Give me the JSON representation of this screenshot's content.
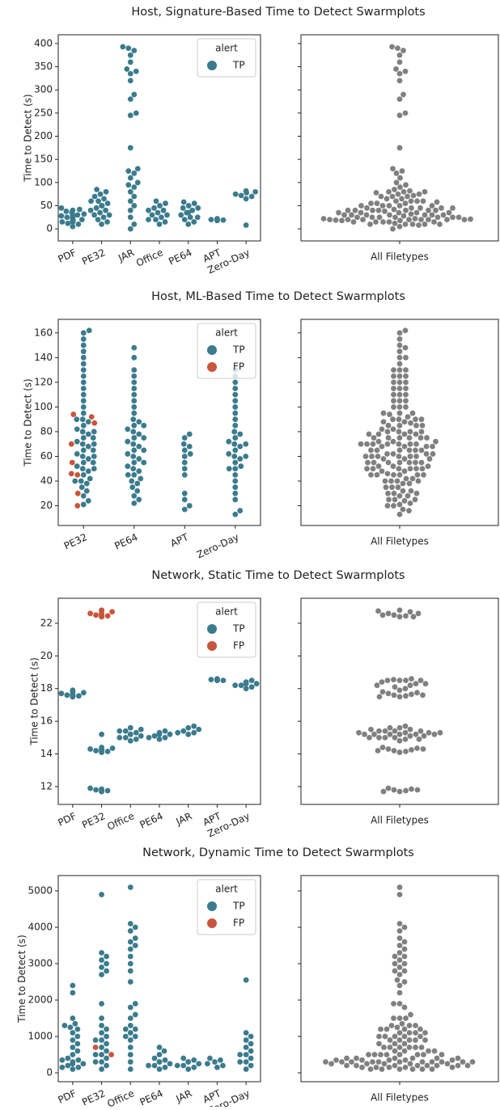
{
  "chart_data": [
    {
      "type": "swarm",
      "title": "Host, Signature-Based Time to Detect Swarmplots",
      "ylabel": "Time to Detect (s)",
      "xlabel_all": "All Filetypes",
      "legend_title": "alert",
      "legend": "upper right",
      "categories": [
        "PDF",
        "PE32",
        "JAR",
        "Office",
        "PE64",
        "APT",
        "Zero-Day"
      ],
      "ylim": [
        -26,
        419
      ],
      "yticks": [
        0,
        50,
        100,
        150,
        200,
        250,
        300,
        350,
        400
      ],
      "series": [
        {
          "name": "TP",
          "color": "#3b7b8d",
          "values": [
            [
              5,
              10,
              12,
              15,
              18,
              20,
              22,
              25,
              28,
              30,
              32,
              35,
              38,
              40,
              42,
              45,
              15,
              20,
              25,
              30
            ],
            [
              10,
              15,
              20,
              25,
              30,
              35,
              40,
              45,
              50,
              55,
              60,
              65,
              70,
              75,
              80,
              85,
              30,
              40,
              50,
              60
            ],
            [
              0,
              10,
              25,
              40,
              50,
              60,
              70,
              80,
              90,
              95,
              100,
              110,
              120,
              125,
              130,
              175,
              245,
              250,
              280,
              290,
              320,
              335,
              340,
              345,
              360,
              375,
              385,
              390,
              393
            ],
            [
              10,
              15,
              20,
              25,
              30,
              35,
              40,
              45,
              50,
              55,
              60,
              20,
              30,
              40
            ],
            [
              10,
              15,
              20,
              25,
              30,
              35,
              40,
              45,
              50,
              55,
              58,
              25,
              35,
              45
            ],
            [
              18,
              19,
              20,
              20,
              21,
              22
            ],
            [
              8,
              65,
              70,
              72,
              75,
              78,
              80,
              82
            ]
          ]
        }
      ]
    },
    {
      "type": "swarm",
      "title": "Host, ML-Based Time to Detect Swarmplots",
      "ylabel": "Time to Detect (s)",
      "xlabel_all": "All Filetypes",
      "legend_title": "alert",
      "legend": "upper right",
      "categories": [
        "PE32",
        "PE64",
        "APT",
        "Zero-Day"
      ],
      "ylim": [
        4,
        171
      ],
      "yticks": [
        20,
        40,
        60,
        80,
        100,
        120,
        140,
        160
      ],
      "series": [
        {
          "name": "TP",
          "color": "#3b7b8d",
          "values": [
            [
              21,
              24,
              28,
              32,
              35,
              38,
              40,
              42,
              45,
              48,
              50,
              52,
              55,
              58,
              60,
              62,
              65,
              68,
              70,
              72,
              75,
              78,
              80,
              82,
              85,
              88,
              90,
              95,
              100,
              105,
              110,
              115,
              120,
              125,
              130,
              135,
              140,
              145,
              150,
              155,
              160,
              162,
              40,
              50,
              60,
              70,
              80,
              90,
              55,
              65,
              75
            ],
            [
              22,
              25,
              28,
              32,
              35,
              38,
              40,
              42,
              45,
              48,
              50,
              52,
              55,
              58,
              60,
              62,
              65,
              68,
              70,
              72,
              75,
              78,
              80,
              82,
              85,
              88,
              90,
              95,
              100,
              105,
              110,
              115,
              120,
              125,
              130,
              140,
              148,
              45,
              55,
              65,
              75,
              85
            ],
            [
              17,
              20,
              25,
              30,
              45,
              50,
              55,
              60,
              62,
              65,
              68,
              70,
              75,
              78
            ],
            [
              13,
              16,
              25,
              30,
              35,
              40,
              45,
              50,
              52,
              55,
              58,
              60,
              62,
              65,
              68,
              70,
              72,
              75,
              78,
              80,
              85,
              90,
              95,
              100,
              105,
              110,
              115,
              120,
              125,
              130,
              50,
              60,
              70
            ]
          ]
        },
        {
          "name": "FP",
          "color": "#c9553c",
          "values": [
            [
              20,
              30,
              45,
              46,
              55,
              70,
              87,
              92,
              94
            ],
            [],
            [],
            []
          ]
        }
      ]
    },
    {
      "type": "swarm",
      "title": "Network, Static Time to Detect Swarmplots",
      "ylabel": "Time to Detect (s)",
      "xlabel_all": "All Filetypes",
      "legend_title": "alert",
      "legend": "upper right",
      "categories": [
        "PDF",
        "PE32",
        "Office",
        "PE64",
        "JAR",
        "APT",
        "Zero-Day"
      ],
      "ylim": [
        10.91,
        23.53
      ],
      "yticks": [
        12,
        14,
        16,
        18,
        20,
        22
      ],
      "series": [
        {
          "name": "TP",
          "color": "#3b7b8d",
          "values": [
            [
              17.5,
              17.55,
              17.6,
              17.65,
              17.7,
              17.75,
              17.8,
              17.9,
              17.5,
              17.6
            ],
            [
              11.7,
              11.75,
              11.8,
              11.85,
              11.9,
              11.7,
              11.8,
              14.1,
              14.15,
              14.2,
              14.25,
              14.3,
              14.35,
              14.4,
              14.2,
              14.3,
              15.2
            ],
            [
              14.8,
              14.9,
              15.0,
              15.1,
              15.2,
              15.3,
              15.4,
              15.5,
              15.6,
              15.0,
              15.2,
              15.4
            ],
            [
              14.9,
              15.0,
              15.1,
              15.2,
              15.3,
              15.4,
              15.0,
              15.2
            ],
            [
              15.2,
              15.3,
              15.4,
              15.5,
              15.6,
              15.7,
              15.3
            ],
            [
              18.5,
              18.5,
              18.55,
              18.6,
              18.5
            ],
            [
              18.0,
              18.1,
              18.2,
              18.3,
              18.4,
              18.5,
              18.2,
              18.3
            ]
          ]
        },
        {
          "name": "FP",
          "color": "#c9553c",
          "values": [
            [],
            [
              22.4,
              22.45,
              22.5,
              22.6,
              22.7,
              22.8,
              22.4,
              22.5,
              22.6,
              22.75
            ],
            [],
            [],
            [],
            [],
            []
          ]
        }
      ]
    },
    {
      "type": "swarm",
      "title": "Network, Dynamic Time to Detect Swarmplots",
      "ylabel": "Time to Detect (s)",
      "xlabel_all": "All Filetypes",
      "legend_title": "alert",
      "legend": "upper right",
      "categories": [
        "PDF",
        "PE32",
        "Office",
        "PE64",
        "JAR",
        "APT",
        "Zero-Day"
      ],
      "ylim": [
        -244,
        5422
      ],
      "yticks": [
        0,
        1000,
        2000,
        3000,
        4000,
        5000
      ],
      "series": [
        {
          "name": "TP",
          "color": "#3b7b8d",
          "values": [
            [
              100,
              150,
              200,
              250,
              300,
              350,
              400,
              500,
              600,
              700,
              800,
              900,
              1000,
              1100,
              1200,
              1250,
              1300,
              1350,
              1500,
              2200,
              2400,
              150,
              250,
              350
            ],
            [
              100,
              200,
              300,
              400,
              500,
              600,
              700,
              800,
              900,
              1000,
              1100,
              1200,
              1300,
              1500,
              1900,
              2700,
              2800,
              2900,
              3000,
              3100,
              3200,
              3300,
              4900,
              300,
              500,
              900
            ],
            [
              100,
              300,
              500,
              700,
              900,
              1000,
              1100,
              1200,
              1300,
              1500,
              1600,
              1800,
              1900,
              2500,
              2800,
              3000,
              3200,
              3400,
              3500,
              3600,
              3700,
              3900,
              4000,
              4100,
              5100,
              1000,
              1200
            ],
            [
              100,
              150,
              200,
              250,
              300,
              350,
              400,
              500,
              600,
              700,
              200,
              300
            ],
            [
              100,
              150,
              200,
              250,
              300,
              350,
              400,
              200,
              300
            ],
            [
              150,
              200,
              300,
              350,
              400,
              250
            ],
            [
              100,
              200,
              300,
              400,
              500,
              600,
              700,
              800,
              900,
              1000,
              1100,
              2550,
              300,
              500
            ]
          ]
        },
        {
          "name": "FP",
          "color": "#c9553c",
          "values": [
            [],
            [
              500,
              700
            ],
            [],
            [],
            [],
            [],
            []
          ]
        }
      ]
    }
  ]
}
